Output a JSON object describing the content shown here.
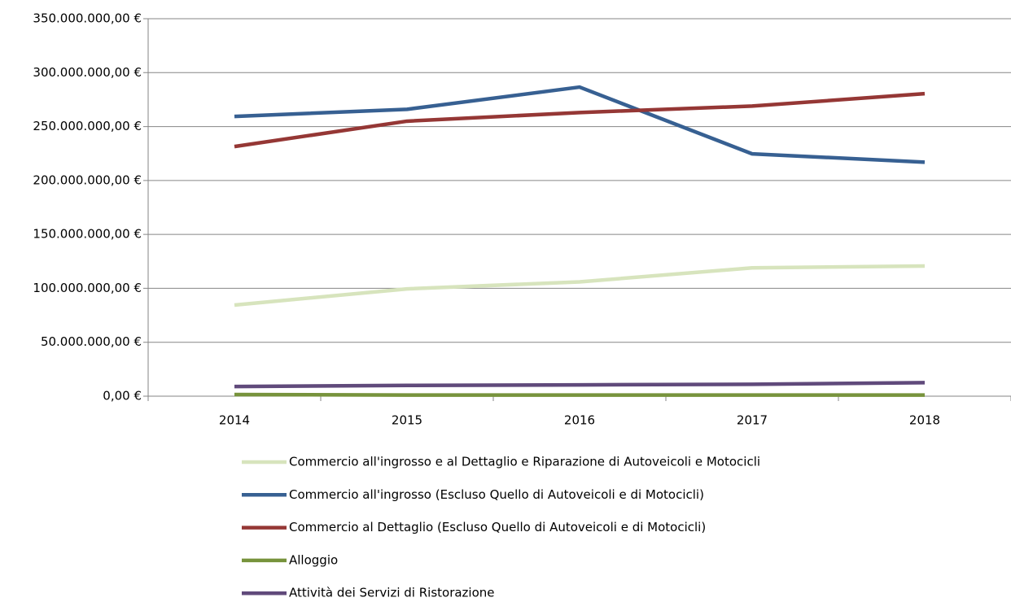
{
  "chart_data": {
    "type": "line",
    "categories": [
      "2014",
      "2015",
      "2016",
      "2017",
      "2018"
    ],
    "series": [
      {
        "name": "Commercio all'ingrosso e al Dettaglio e Riparazione di Autoveicoli e Motocicli",
        "color": "#d7e4bd",
        "values": [
          84500000,
          99500000,
          106000000,
          119000000,
          120700000
        ]
      },
      {
        "name": "Commercio all'ingrosso (Escluso Quello di Autoveicoli e di Motocicli)",
        "color": "#376092",
        "values": [
          259400000,
          266000000,
          286600000,
          224700000,
          217000000
        ]
      },
      {
        "name": "Commercio al Dettaglio (Escluso Quello di Autoveicoli e di Motocicli)",
        "color": "#953735",
        "values": [
          231500000,
          255000000,
          263000000,
          269000000,
          280500000
        ]
      },
      {
        "name": "Alloggio",
        "color": "#77933c",
        "values": [
          1500000,
          1000000,
          1000000,
          1000000,
          1000000
        ]
      },
      {
        "name": "Attività dei Servizi di Ristorazione",
        "color": "#604a7b",
        "values": [
          9000000,
          10000000,
          10500000,
          11000000,
          12500000
        ]
      }
    ],
    "ylim": [
      0,
      350000000
    ],
    "yticks": [
      {
        "value": 0,
        "label": "0,00 €"
      },
      {
        "value": 50000000,
        "label": "50.000.000,00 €"
      },
      {
        "value": 100000000,
        "label": "100.000.000,00 €"
      },
      {
        "value": 150000000,
        "label": "150.000.000,00 €"
      },
      {
        "value": 200000000,
        "label": "200.000.000,00 €"
      },
      {
        "value": 250000000,
        "label": "250.000.000,00 €"
      },
      {
        "value": 300000000,
        "label": "300.000.000,00 €"
      },
      {
        "value": 350000000,
        "label": "350.000.000,00 €"
      }
    ],
    "grid": true,
    "legend": "bottom"
  }
}
